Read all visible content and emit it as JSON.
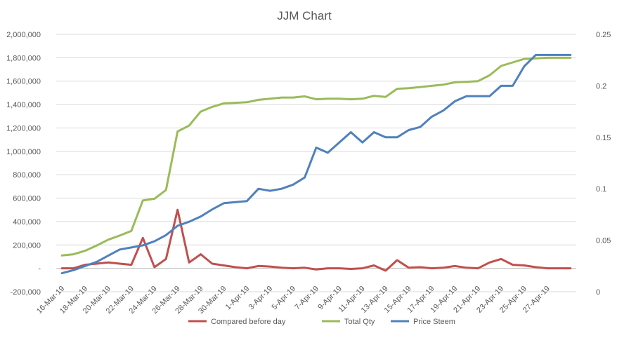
{
  "chart_data": {
    "type": "line",
    "title": "JJM Chart",
    "xlabel": "",
    "ylabel": "",
    "y2label": "",
    "ylim": [
      -200000,
      2000000
    ],
    "y_ticks": [
      -200000,
      0,
      200000,
      400000,
      600000,
      800000,
      1000000,
      1200000,
      1400000,
      1600000,
      1800000,
      2000000
    ],
    "y_tick_labels": [
      "-200,000",
      "-",
      "200,000",
      "400,000",
      "600,000",
      "800,000",
      "1,000,000",
      "1,200,000",
      "1,400,000",
      "1,600,000",
      "1,800,000",
      "2,000,000"
    ],
    "y2lim": [
      0,
      0.25
    ],
    "y2_ticks": [
      0,
      0.05,
      0.1,
      0.15,
      0.2,
      0.25
    ],
    "y2_tick_labels": [
      "0",
      "0.05",
      "0.1",
      "0.15",
      "0.2",
      "0.25"
    ],
    "grid": "horizontal",
    "legend_position": "bottom",
    "x": [
      "16-Mar-19",
      "17-Mar-19",
      "18-Mar-19",
      "19-Mar-19",
      "20-Mar-19",
      "21-Mar-19",
      "22-Mar-19",
      "23-Mar-19",
      "24-Mar-19",
      "25-Mar-19",
      "26-Mar-19",
      "27-Mar-19",
      "28-Mar-19",
      "29-Mar-19",
      "30-Mar-19",
      "31-Mar-19",
      "1-Apr-19",
      "2-Apr-19",
      "3-Apr-19",
      "4-Apr-19",
      "5-Apr-19",
      "6-Apr-19",
      "7-Apr-19",
      "8-Apr-19",
      "9-Apr-19",
      "10-Apr-19",
      "11-Apr-19",
      "12-Apr-19",
      "13-Apr-19",
      "14-Apr-19",
      "15-Apr-19",
      "16-Apr-19",
      "17-Apr-19",
      "18-Apr-19",
      "19-Apr-19",
      "20-Apr-19",
      "21-Apr-19",
      "22-Apr-19",
      "23-Apr-19",
      "24-Apr-19",
      "25-Apr-19",
      "26-Apr-19",
      "27-Apr-19",
      "28-Apr-19",
      "29-Apr-19"
    ],
    "x_tick_labels": [
      "16-Mar-19",
      "18-Mar-19",
      "20-Mar-19",
      "22-Mar-19",
      "24-Mar-19",
      "26-Mar-19",
      "28-Mar-19",
      "30-Mar-19",
      "1-Apr-19",
      "3-Apr-19",
      "5-Apr-19",
      "7-Apr-19",
      "9-Apr-19",
      "11-Apr-19",
      "13-Apr-19",
      "15-Apr-19",
      "17-Apr-19",
      "19-Apr-19",
      "21-Apr-19",
      "23-Apr-19",
      "25-Apr-19",
      "27-Apr-19"
    ],
    "series": [
      {
        "name": "Compared before day",
        "axis": "left",
        "color": "#C0504D",
        "values": [
          0,
          0,
          30000,
          40000,
          50000,
          40000,
          30000,
          260000,
          10000,
          80000,
          500000,
          50000,
          120000,
          40000,
          25000,
          10000,
          0,
          20000,
          15000,
          5000,
          0,
          5000,
          -10000,
          0,
          0,
          -5000,
          0,
          25000,
          -20000,
          70000,
          5000,
          10000,
          0,
          5000,
          20000,
          5000,
          0,
          50000,
          80000,
          30000,
          25000,
          10000,
          0,
          0,
          0
        ]
      },
      {
        "name": "Total Qty",
        "axis": "left",
        "color": "#9BBB59",
        "values": [
          110000,
          120000,
          150000,
          195000,
          245000,
          280000,
          320000,
          580000,
          595000,
          670000,
          1170000,
          1220000,
          1340000,
          1380000,
          1410000,
          1415000,
          1420000,
          1440000,
          1450000,
          1460000,
          1460000,
          1470000,
          1445000,
          1450000,
          1450000,
          1445000,
          1450000,
          1475000,
          1465000,
          1535000,
          1540000,
          1550000,
          1560000,
          1570000,
          1590000,
          1595000,
          1600000,
          1650000,
          1730000,
          1760000,
          1790000,
          1795000,
          1800000,
          1800000,
          1800000
        ]
      },
      {
        "name": "Price Steem",
        "axis": "right",
        "color": "#4F81BD",
        "values": [
          0.018,
          0.021,
          0.025,
          0.029,
          0.035,
          0.041,
          0.043,
          0.045,
          0.049,
          0.055,
          0.064,
          0.068,
          0.073,
          0.08,
          0.086,
          0.087,
          0.088,
          0.1,
          0.098,
          0.1,
          0.104,
          0.111,
          0.14,
          0.135,
          0.145,
          0.155,
          0.145,
          0.155,
          0.15,
          0.15,
          0.157,
          0.16,
          0.17,
          0.176,
          0.185,
          0.19,
          0.19,
          0.19,
          0.2,
          0.2,
          0.219,
          0.23,
          0.23,
          0.23,
          0.23
        ]
      }
    ]
  }
}
